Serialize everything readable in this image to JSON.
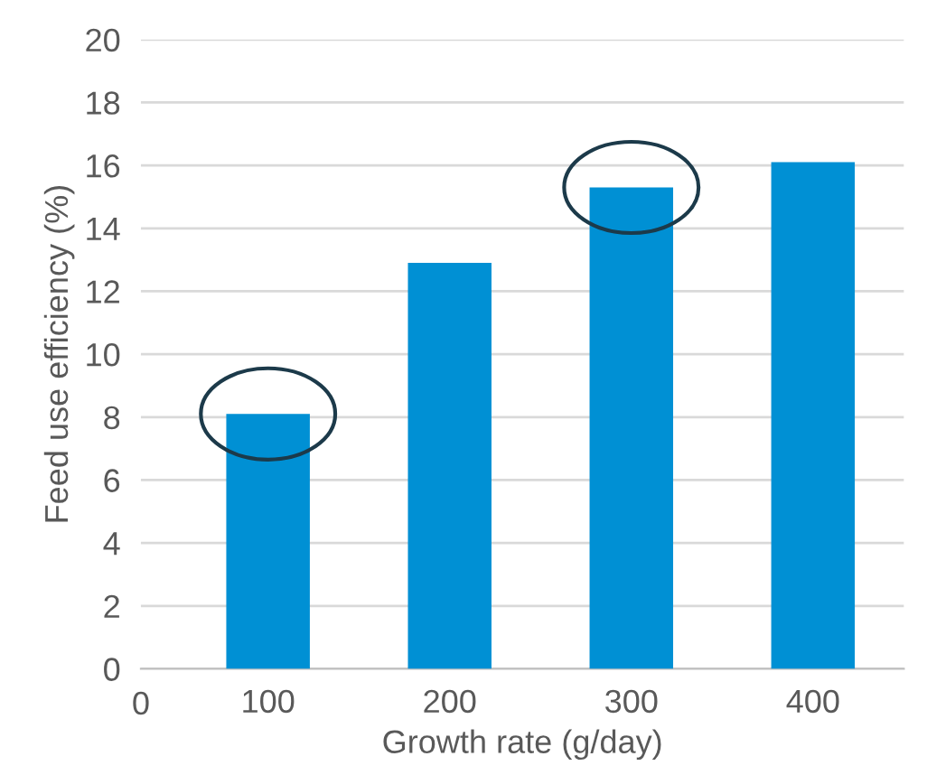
{
  "chart_data": {
    "type": "bar",
    "xlabel": "Growth rate (g/day)",
    "ylabel": "Feed use efficiency (%)",
    "categories": [
      "100",
      "200",
      "300",
      "400"
    ],
    "values": [
      8.1,
      12.9,
      15.3,
      16.1
    ],
    "color": "#0090d4",
    "ylim": [
      0,
      20
    ],
    "yticks": [
      0,
      2,
      4,
      6,
      8,
      10,
      12,
      14,
      16,
      18,
      20
    ],
    "grid": "y",
    "annotations": [
      "0"
    ]
  }
}
